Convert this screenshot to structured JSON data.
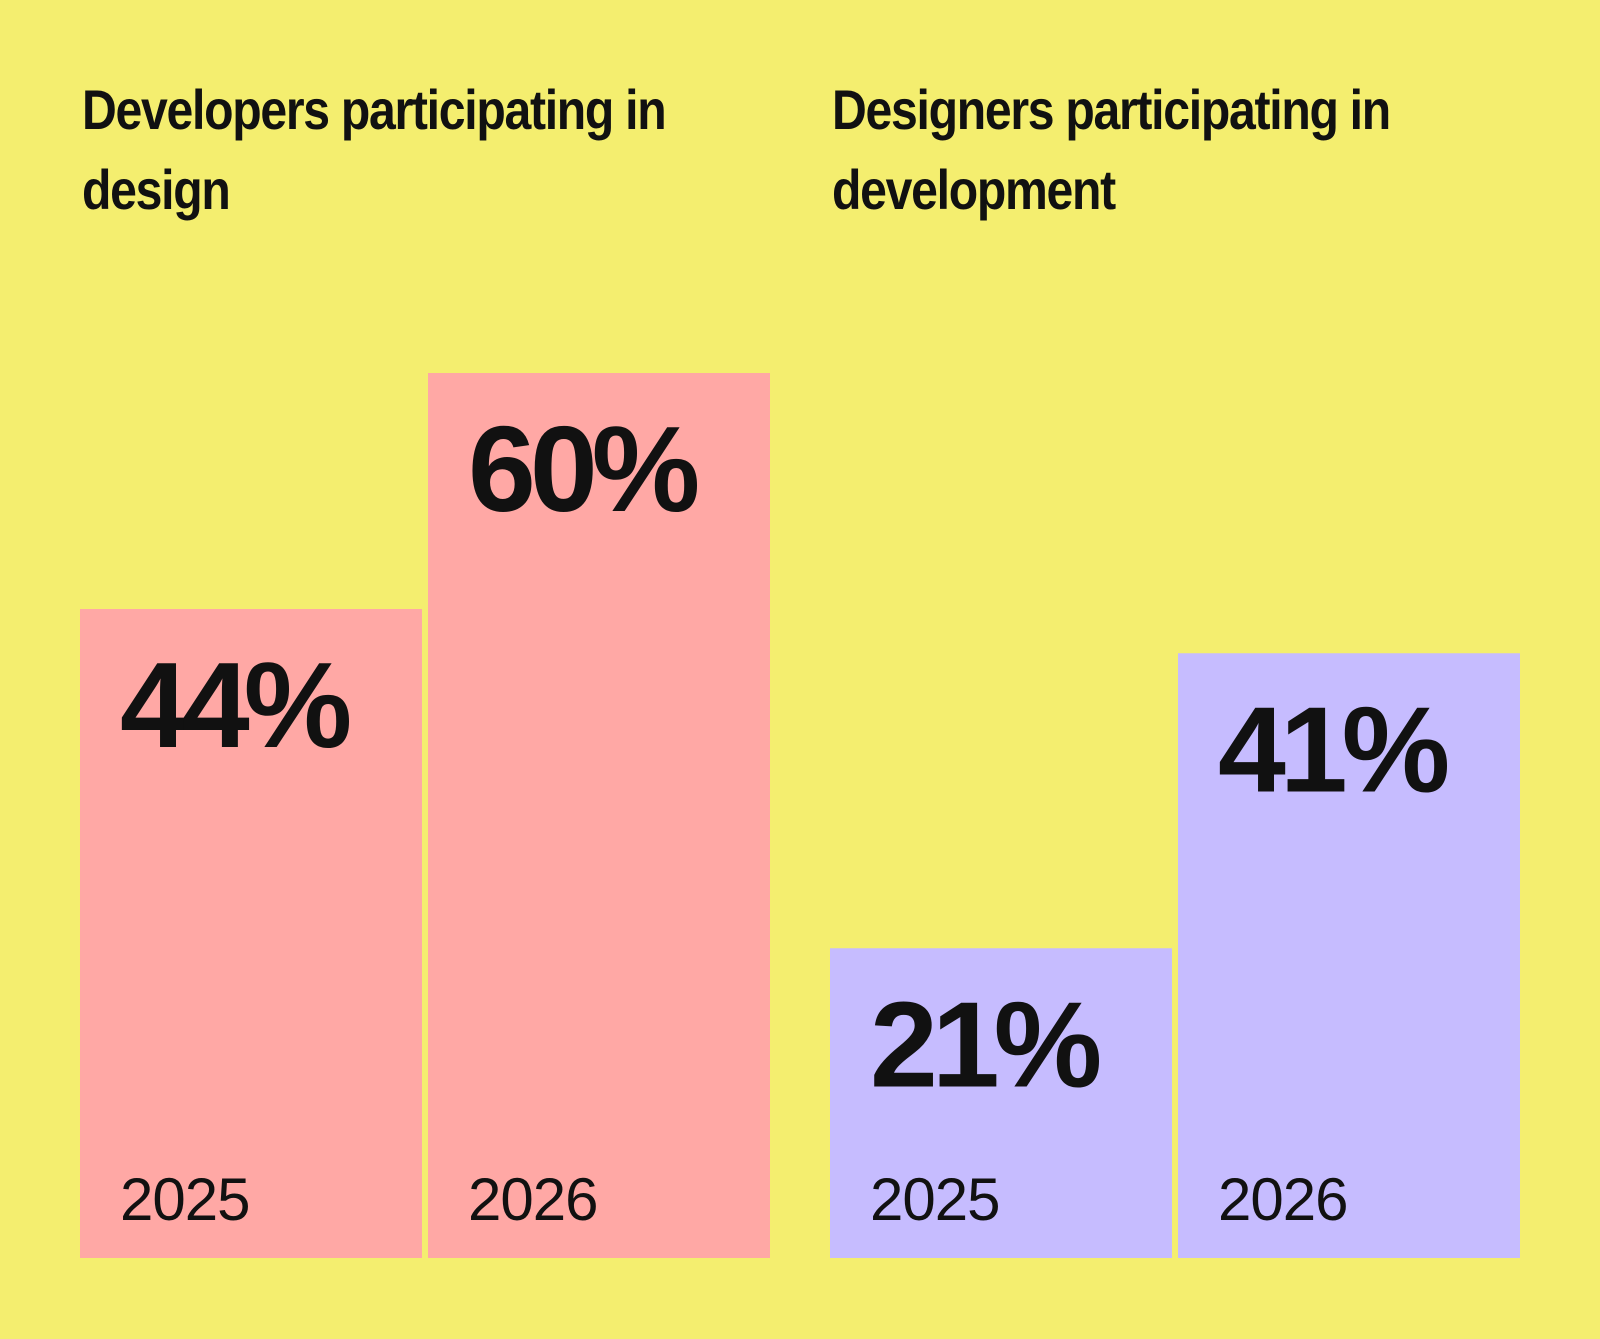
{
  "colors": {
    "background": "#f4ee6f",
    "text": "#111111"
  },
  "chart_data": [
    {
      "type": "bar",
      "title": "Developers participating in design",
      "categories": [
        "2025",
        "2026"
      ],
      "values": [
        44,
        60
      ],
      "value_labels": [
        "44%",
        "60%"
      ],
      "ylim": [
        0,
        100
      ],
      "xlabel": "",
      "ylabel": "",
      "grid": false,
      "bar_color": "#ffa8a5"
    },
    {
      "type": "bar",
      "title": "Designers participating in development",
      "categories": [
        "2025",
        "2026"
      ],
      "values": [
        21,
        41
      ],
      "value_labels": [
        "21%",
        "41%"
      ],
      "ylim": [
        0,
        100
      ],
      "xlabel": "",
      "ylabel": "",
      "grid": false,
      "bar_color": "#c6bcff"
    }
  ]
}
